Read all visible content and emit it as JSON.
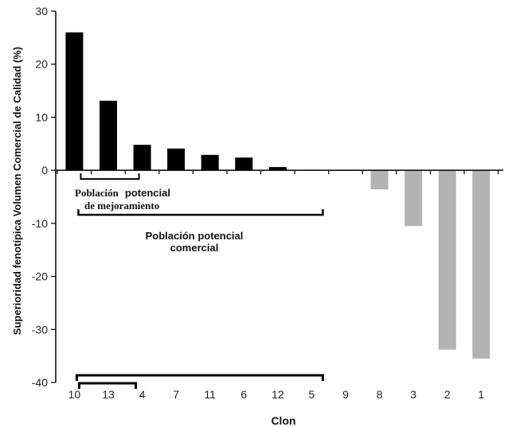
{
  "chart_data": {
    "type": "bar",
    "categories": [
      "10",
      "13",
      "4",
      "7",
      "11",
      "6",
      "12",
      "5",
      "9",
      "8",
      "3",
      "2",
      "1"
    ],
    "values": [
      26,
      13.1,
      4.8,
      4.1,
      2.9,
      2.4,
      0.6,
      0.1,
      -0.1,
      -3.6,
      -10.5,
      -33.8,
      -35.5
    ],
    "colors": [
      "#000000",
      "#000000",
      "#000000",
      "#000000",
      "#000000",
      "#000000",
      "#000000",
      "#000000",
      "#b3b3b3",
      "#b3b3b3",
      "#b3b3b3",
      "#b3b3b3",
      "#b3b3b3"
    ],
    "ylim": [
      -40,
      30
    ],
    "yticks": [
      30,
      20,
      10,
      0,
      -10,
      -20,
      -30,
      -40
    ],
    "xlabel": "Clon",
    "ylabel": "Superioridad fenotípica Volumen Comercial de Calidad (%)",
    "grid": false,
    "annotations": [
      {
        "line1_a": "Población",
        "line1_b": "potencial",
        "line2": "de mejoramiento",
        "from": "10",
        "to": "4"
      },
      {
        "line1": "Población potencial",
        "line2": "comercial",
        "from": "10",
        "to": "5"
      }
    ]
  }
}
